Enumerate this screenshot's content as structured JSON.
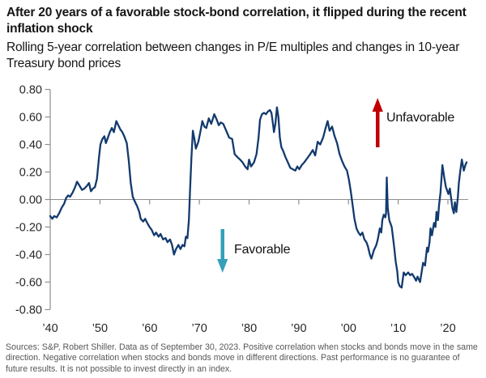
{
  "header": {
    "title": "After 20 years of a favorable stock-bond correlation, it flipped during the recent inflation shock",
    "subtitle": "Rolling 5-year correlation between changes in P/E multiples and changes in 10-year Treasury bond prices"
  },
  "annotations": {
    "unfavorable": {
      "label": "Unfavorable",
      "arrow_color": "#c00000",
      "direction": "up"
    },
    "favorable": {
      "label": "Favorable",
      "arrow_color": "#359fb8",
      "direction": "down"
    }
  },
  "footer": {
    "source_text": "Sources: S&P, Robert Shiller. Data as of September 30, 2023. Positive correlation when stocks and bonds move in the same direction. Negative correlation when stocks and bonds move in different directions. Past performance is no guarantee of future results. It is not possible to invest directly in an index."
  },
  "chart_data": {
    "type": "line",
    "title": "After 20 years of a favorable stock-bond correlation, it flipped during the recent inflation shock",
    "subtitle": "Rolling 5-year correlation between changes in P/E multiples and changes in 10-year Treasury bond prices",
    "xlim": [
      1940,
      2023.75
    ],
    "ylim": [
      -0.8,
      0.8
    ],
    "grid": "zero-line-only",
    "axis_color": "#8f8f8f",
    "tick_label_color": "#262626",
    "x_ticks": [
      {
        "year": 1940,
        "label": "’40"
      },
      {
        "year": 1950,
        "label": "’50"
      },
      {
        "year": 1960,
        "label": "’60"
      },
      {
        "year": 1970,
        "label": "’70"
      },
      {
        "year": 1980,
        "label": "’80"
      },
      {
        "year": 1990,
        "label": "’90"
      },
      {
        "year": 2000,
        "label": "’00"
      },
      {
        "year": 2010,
        "label": "’10"
      },
      {
        "year": 2020,
        "label": "’20"
      }
    ],
    "y_ticks": [
      {
        "value": 0.8,
        "label": "0.80"
      },
      {
        "value": 0.6,
        "label": "0.60"
      },
      {
        "value": 0.4,
        "label": "0.40"
      },
      {
        "value": 0.2,
        "label": "0.20"
      },
      {
        "value": 0.0,
        "label": "0.00"
      },
      {
        "value": -0.2,
        "label": "-0.20"
      },
      {
        "value": -0.4,
        "label": "-0.40"
      },
      {
        "value": -0.6,
        "label": "-0.60"
      },
      {
        "value": -0.8,
        "label": "-0.80"
      }
    ],
    "series": [
      {
        "name": "Rolling 5-year correlation of changes in P/E multiples and changes in 10-year Treasury bond prices",
        "color": "#123a6e",
        "points": [
          [
            1940.0,
            -0.12
          ],
          [
            1940.4,
            -0.14
          ],
          [
            1940.8,
            -0.12
          ],
          [
            1941.3,
            -0.13
          ],
          [
            1941.8,
            -0.1
          ],
          [
            1942.3,
            -0.06
          ],
          [
            1942.8,
            -0.03
          ],
          [
            1943.2,
            0.01
          ],
          [
            1943.6,
            0.03
          ],
          [
            1944.0,
            0.02
          ],
          [
            1944.5,
            0.05
          ],
          [
            1945.0,
            0.09
          ],
          [
            1945.4,
            0.13
          ],
          [
            1945.9,
            0.1
          ],
          [
            1946.4,
            0.07
          ],
          [
            1946.9,
            0.08
          ],
          [
            1947.4,
            0.1
          ],
          [
            1947.8,
            0.12
          ],
          [
            1948.2,
            0.06
          ],
          [
            1948.6,
            0.08
          ],
          [
            1949.0,
            0.09
          ],
          [
            1949.4,
            0.15
          ],
          [
            1949.8,
            0.3
          ],
          [
            1950.1,
            0.4
          ],
          [
            1950.5,
            0.44
          ],
          [
            1950.9,
            0.46
          ],
          [
            1951.2,
            0.41
          ],
          [
            1951.6,
            0.45
          ],
          [
            1952.0,
            0.49
          ],
          [
            1952.4,
            0.52
          ],
          [
            1952.8,
            0.49
          ],
          [
            1953.3,
            0.57
          ],
          [
            1953.7,
            0.54
          ],
          [
            1954.1,
            0.51
          ],
          [
            1954.5,
            0.49
          ],
          [
            1954.9,
            0.46
          ],
          [
            1955.4,
            0.41
          ],
          [
            1955.8,
            0.28
          ],
          [
            1956.2,
            0.12
          ],
          [
            1956.6,
            0.02
          ],
          [
            1957.1,
            -0.02
          ],
          [
            1957.5,
            -0.05
          ],
          [
            1957.9,
            -0.09
          ],
          [
            1958.2,
            -0.14
          ],
          [
            1958.7,
            -0.16
          ],
          [
            1959.1,
            -0.14
          ],
          [
            1959.5,
            -0.17
          ],
          [
            1960.0,
            -0.2
          ],
          [
            1960.4,
            -0.22
          ],
          [
            1960.9,
            -0.26
          ],
          [
            1961.3,
            -0.24
          ],
          [
            1961.8,
            -0.27
          ],
          [
            1962.2,
            -0.25
          ],
          [
            1962.7,
            -0.29
          ],
          [
            1963.2,
            -0.28
          ],
          [
            1963.6,
            -0.31
          ],
          [
            1964.1,
            -0.29
          ],
          [
            1964.5,
            -0.33
          ],
          [
            1964.9,
            -0.4
          ],
          [
            1965.3,
            -0.36
          ],
          [
            1965.8,
            -0.33
          ],
          [
            1966.2,
            -0.36
          ],
          [
            1966.6,
            -0.33
          ],
          [
            1967.0,
            -0.34
          ],
          [
            1967.3,
            -0.27
          ],
          [
            1967.6,
            -0.28
          ],
          [
            1967.9,
            -0.15
          ],
          [
            1968.1,
            0.05
          ],
          [
            1968.4,
            0.3
          ],
          [
            1968.7,
            0.5
          ],
          [
            1969.0,
            0.44
          ],
          [
            1969.3,
            0.37
          ],
          [
            1969.8,
            0.42
          ],
          [
            1970.2,
            0.49
          ],
          [
            1970.6,
            0.57
          ],
          [
            1971.0,
            0.53
          ],
          [
            1971.4,
            0.52
          ],
          [
            1971.9,
            0.59
          ],
          [
            1972.4,
            0.55
          ],
          [
            1973.0,
            0.62
          ],
          [
            1973.5,
            0.58
          ],
          [
            1973.9,
            0.54
          ],
          [
            1974.3,
            0.56
          ],
          [
            1974.8,
            0.55
          ],
          [
            1975.4,
            0.5
          ],
          [
            1976.0,
            0.45
          ],
          [
            1976.6,
            0.44
          ],
          [
            1977.1,
            0.33
          ],
          [
            1977.6,
            0.31
          ],
          [
            1978.2,
            0.29
          ],
          [
            1978.7,
            0.27
          ],
          [
            1979.2,
            0.24
          ],
          [
            1979.7,
            0.22
          ],
          [
            1980.0,
            0.29
          ],
          [
            1980.4,
            0.24
          ],
          [
            1981.0,
            0.27
          ],
          [
            1981.5,
            0.33
          ],
          [
            1981.9,
            0.45
          ],
          [
            1982.2,
            0.58
          ],
          [
            1982.6,
            0.62
          ],
          [
            1983.0,
            0.63
          ],
          [
            1983.4,
            0.62
          ],
          [
            1983.8,
            0.64
          ],
          [
            1984.2,
            0.65
          ],
          [
            1984.5,
            0.63
          ],
          [
            1984.8,
            0.55
          ],
          [
            1985.0,
            0.49
          ],
          [
            1985.3,
            0.55
          ],
          [
            1985.6,
            0.67
          ],
          [
            1985.9,
            0.6
          ],
          [
            1986.2,
            0.45
          ],
          [
            1986.5,
            0.38
          ],
          [
            1986.9,
            0.35
          ],
          [
            1987.3,
            0.31
          ],
          [
            1987.8,
            0.27
          ],
          [
            1988.3,
            0.23
          ],
          [
            1988.8,
            0.22
          ],
          [
            1989.3,
            0.21
          ],
          [
            1989.7,
            0.24
          ],
          [
            1990.1,
            0.22
          ],
          [
            1990.6,
            0.25
          ],
          [
            1991.1,
            0.27
          ],
          [
            1991.7,
            0.3
          ],
          [
            1992.3,
            0.33
          ],
          [
            1992.8,
            0.36
          ],
          [
            1993.3,
            0.32
          ],
          [
            1993.8,
            0.42
          ],
          [
            1994.3,
            0.4
          ],
          [
            1994.9,
            0.45
          ],
          [
            1995.4,
            0.52
          ],
          [
            1995.8,
            0.57
          ],
          [
            1996.2,
            0.5
          ],
          [
            1996.7,
            0.53
          ],
          [
            1997.2,
            0.46
          ],
          [
            1997.7,
            0.41
          ],
          [
            1998.2,
            0.33
          ],
          [
            1998.7,
            0.28
          ],
          [
            1999.2,
            0.24
          ],
          [
            1999.7,
            0.21
          ],
          [
            2000.1,
            0.14
          ],
          [
            2000.5,
            0.05
          ],
          [
            2000.8,
            -0.03
          ],
          [
            2001.2,
            -0.14
          ],
          [
            2001.6,
            -0.21
          ],
          [
            2002.0,
            -0.24
          ],
          [
            2002.4,
            -0.26
          ],
          [
            2002.8,
            -0.24
          ],
          [
            2003.2,
            -0.29
          ],
          [
            2003.6,
            -0.31
          ],
          [
            2003.9,
            -0.34
          ],
          [
            2004.3,
            -0.4
          ],
          [
            2004.6,
            -0.43
          ],
          [
            2005.1,
            -0.37
          ],
          [
            2005.6,
            -0.33
          ],
          [
            2005.9,
            -0.29
          ],
          [
            2006.3,
            -0.21
          ],
          [
            2006.6,
            -0.24
          ],
          [
            2006.8,
            -0.15
          ],
          [
            2007.1,
            -0.11
          ],
          [
            2007.4,
            -0.13
          ],
          [
            2007.55,
            -0.1
          ],
          [
            2007.7,
            0.16
          ],
          [
            2007.9,
            -0.06
          ],
          [
            2008.2,
            -0.15
          ],
          [
            2008.7,
            -0.2
          ],
          [
            2009.0,
            -0.29
          ],
          [
            2009.2,
            -0.35
          ],
          [
            2009.5,
            -0.45
          ],
          [
            2009.8,
            -0.52
          ],
          [
            2010.0,
            -0.6
          ],
          [
            2010.3,
            -0.63
          ],
          [
            2010.7,
            -0.64
          ],
          [
            2011.1,
            -0.53
          ],
          [
            2011.5,
            -0.55
          ],
          [
            2012.0,
            -0.53
          ],
          [
            2012.4,
            -0.55
          ],
          [
            2012.8,
            -0.54
          ],
          [
            2013.3,
            -0.57
          ],
          [
            2013.6,
            -0.59
          ],
          [
            2013.9,
            -0.56
          ],
          [
            2014.4,
            -0.6
          ],
          [
            2014.7,
            -0.53
          ],
          [
            2015.0,
            -0.46
          ],
          [
            2015.4,
            -0.48
          ],
          [
            2015.6,
            -0.41
          ],
          [
            2015.8,
            -0.35
          ],
          [
            2016.0,
            -0.38
          ],
          [
            2016.3,
            -0.31
          ],
          [
            2016.5,
            -0.21
          ],
          [
            2016.8,
            -0.26
          ],
          [
            2017.2,
            -0.17
          ],
          [
            2017.5,
            -0.2
          ],
          [
            2017.7,
            -0.09
          ],
          [
            2018.0,
            -0.15
          ],
          [
            2018.2,
            -0.05
          ],
          [
            2018.5,
            0.05
          ],
          [
            2018.9,
            0.25
          ],
          [
            2019.3,
            0.15
          ],
          [
            2019.6,
            0.09
          ],
          [
            2019.8,
            0.07
          ],
          [
            2020.1,
            0.04
          ],
          [
            2020.4,
            0.08
          ],
          [
            2020.6,
            0.02
          ],
          [
            2020.9,
            -0.06
          ],
          [
            2021.2,
            -0.1
          ],
          [
            2021.4,
            -0.02
          ],
          [
            2021.7,
            -0.09
          ],
          [
            2022.0,
            0.02
          ],
          [
            2022.2,
            0.12
          ],
          [
            2022.5,
            0.21
          ],
          [
            2022.8,
            0.29
          ],
          [
            2023.2,
            0.21
          ],
          [
            2023.5,
            0.25
          ],
          [
            2023.75,
            0.27
          ]
        ]
      }
    ]
  }
}
